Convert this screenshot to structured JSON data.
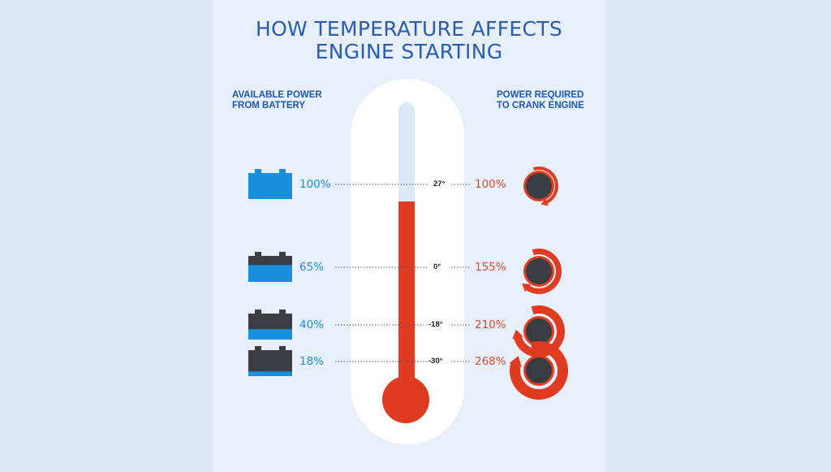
{
  "title": {
    "line1": "HOW TEMPERATURE AFFECTS",
    "line2": "ENGINE STARTING"
  },
  "left_header": {
    "line1": "AVAILABLE POWER",
    "line2": "FROM BATTERY"
  },
  "right_header": {
    "line1": "POWER REQUIRED",
    "line2": "TO CRANK ENGINE"
  },
  "rows": [
    {
      "battery_pct": "100%",
      "battery_fill": 1.0,
      "temp": "27°",
      "crank_pct": "100%",
      "crank_arc": 0.25
    },
    {
      "battery_pct": "65%",
      "battery_fill": 0.65,
      "temp": "0°",
      "crank_pct": "155%",
      "crank_arc": 0.55
    },
    {
      "battery_pct": "40%",
      "battery_fill": 0.4,
      "temp": "-18°",
      "crank_pct": "210%",
      "crank_arc": 0.75
    },
    {
      "battery_pct": "18%",
      "battery_fill": 0.18,
      "temp": "-30°",
      "crank_pct": "268%",
      "crank_arc": 0.9
    }
  ],
  "colors": {
    "blue": "#1a8fdc",
    "red": "#e03c22",
    "dark": "#3a3d42",
    "title_blue": "#2a5bb0"
  },
  "icons": {
    "battery": "battery-icon",
    "crank": "crank-dial-icon",
    "thermometer": "thermometer-icon"
  }
}
